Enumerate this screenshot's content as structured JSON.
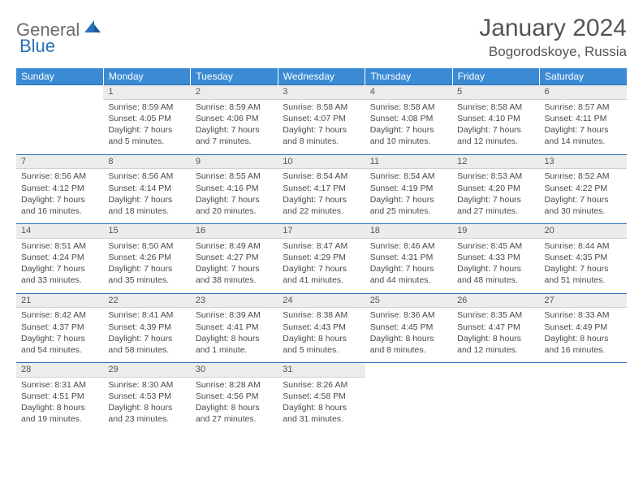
{
  "logo": {
    "part1": "General",
    "part2": "Blue"
  },
  "title": "January 2024",
  "location": "Bogorodskoye, Russia",
  "colors": {
    "header_bg": "#3b8bd4",
    "accent": "#2a71b8",
    "daynum_bg": "#ececec",
    "text": "#4a4a4a",
    "title_text": "#555555"
  },
  "weekdays": [
    "Sunday",
    "Monday",
    "Tuesday",
    "Wednesday",
    "Thursday",
    "Friday",
    "Saturday"
  ],
  "weeks": [
    {
      "nums": [
        "",
        "1",
        "2",
        "3",
        "4",
        "5",
        "6"
      ],
      "cells": [
        null,
        {
          "sunrise": "8:59 AM",
          "sunset": "4:05 PM",
          "daylight": "7 hours and 5 minutes."
        },
        {
          "sunrise": "8:59 AM",
          "sunset": "4:06 PM",
          "daylight": "7 hours and 7 minutes."
        },
        {
          "sunrise": "8:58 AM",
          "sunset": "4:07 PM",
          "daylight": "7 hours and 8 minutes."
        },
        {
          "sunrise": "8:58 AM",
          "sunset": "4:08 PM",
          "daylight": "7 hours and 10 minutes."
        },
        {
          "sunrise": "8:58 AM",
          "sunset": "4:10 PM",
          "daylight": "7 hours and 12 minutes."
        },
        {
          "sunrise": "8:57 AM",
          "sunset": "4:11 PM",
          "daylight": "7 hours and 14 minutes."
        }
      ]
    },
    {
      "nums": [
        "7",
        "8",
        "9",
        "10",
        "11",
        "12",
        "13"
      ],
      "cells": [
        {
          "sunrise": "8:56 AM",
          "sunset": "4:12 PM",
          "daylight": "7 hours and 16 minutes."
        },
        {
          "sunrise": "8:56 AM",
          "sunset": "4:14 PM",
          "daylight": "7 hours and 18 minutes."
        },
        {
          "sunrise": "8:55 AM",
          "sunset": "4:16 PM",
          "daylight": "7 hours and 20 minutes."
        },
        {
          "sunrise": "8:54 AM",
          "sunset": "4:17 PM",
          "daylight": "7 hours and 22 minutes."
        },
        {
          "sunrise": "8:54 AM",
          "sunset": "4:19 PM",
          "daylight": "7 hours and 25 minutes."
        },
        {
          "sunrise": "8:53 AM",
          "sunset": "4:20 PM",
          "daylight": "7 hours and 27 minutes."
        },
        {
          "sunrise": "8:52 AM",
          "sunset": "4:22 PM",
          "daylight": "7 hours and 30 minutes."
        }
      ]
    },
    {
      "nums": [
        "14",
        "15",
        "16",
        "17",
        "18",
        "19",
        "20"
      ],
      "cells": [
        {
          "sunrise": "8:51 AM",
          "sunset": "4:24 PM",
          "daylight": "7 hours and 33 minutes."
        },
        {
          "sunrise": "8:50 AM",
          "sunset": "4:26 PM",
          "daylight": "7 hours and 35 minutes."
        },
        {
          "sunrise": "8:49 AM",
          "sunset": "4:27 PM",
          "daylight": "7 hours and 38 minutes."
        },
        {
          "sunrise": "8:47 AM",
          "sunset": "4:29 PM",
          "daylight": "7 hours and 41 minutes."
        },
        {
          "sunrise": "8:46 AM",
          "sunset": "4:31 PM",
          "daylight": "7 hours and 44 minutes."
        },
        {
          "sunrise": "8:45 AM",
          "sunset": "4:33 PM",
          "daylight": "7 hours and 48 minutes."
        },
        {
          "sunrise": "8:44 AM",
          "sunset": "4:35 PM",
          "daylight": "7 hours and 51 minutes."
        }
      ]
    },
    {
      "nums": [
        "21",
        "22",
        "23",
        "24",
        "25",
        "26",
        "27"
      ],
      "cells": [
        {
          "sunrise": "8:42 AM",
          "sunset": "4:37 PM",
          "daylight": "7 hours and 54 minutes."
        },
        {
          "sunrise": "8:41 AM",
          "sunset": "4:39 PM",
          "daylight": "7 hours and 58 minutes."
        },
        {
          "sunrise": "8:39 AM",
          "sunset": "4:41 PM",
          "daylight": "8 hours and 1 minute."
        },
        {
          "sunrise": "8:38 AM",
          "sunset": "4:43 PM",
          "daylight": "8 hours and 5 minutes."
        },
        {
          "sunrise": "8:36 AM",
          "sunset": "4:45 PM",
          "daylight": "8 hours and 8 minutes."
        },
        {
          "sunrise": "8:35 AM",
          "sunset": "4:47 PM",
          "daylight": "8 hours and 12 minutes."
        },
        {
          "sunrise": "8:33 AM",
          "sunset": "4:49 PM",
          "daylight": "8 hours and 16 minutes."
        }
      ]
    },
    {
      "nums": [
        "28",
        "29",
        "30",
        "31",
        "",
        "",
        ""
      ],
      "cells": [
        {
          "sunrise": "8:31 AM",
          "sunset": "4:51 PM",
          "daylight": "8 hours and 19 minutes."
        },
        {
          "sunrise": "8:30 AM",
          "sunset": "4:53 PM",
          "daylight": "8 hours and 23 minutes."
        },
        {
          "sunrise": "8:28 AM",
          "sunset": "4:56 PM",
          "daylight": "8 hours and 27 minutes."
        },
        {
          "sunrise": "8:26 AM",
          "sunset": "4:58 PM",
          "daylight": "8 hours and 31 minutes."
        },
        null,
        null,
        null
      ]
    }
  ],
  "labels": {
    "sunrise": "Sunrise: ",
    "sunset": "Sunset: ",
    "daylight": "Daylight: "
  }
}
